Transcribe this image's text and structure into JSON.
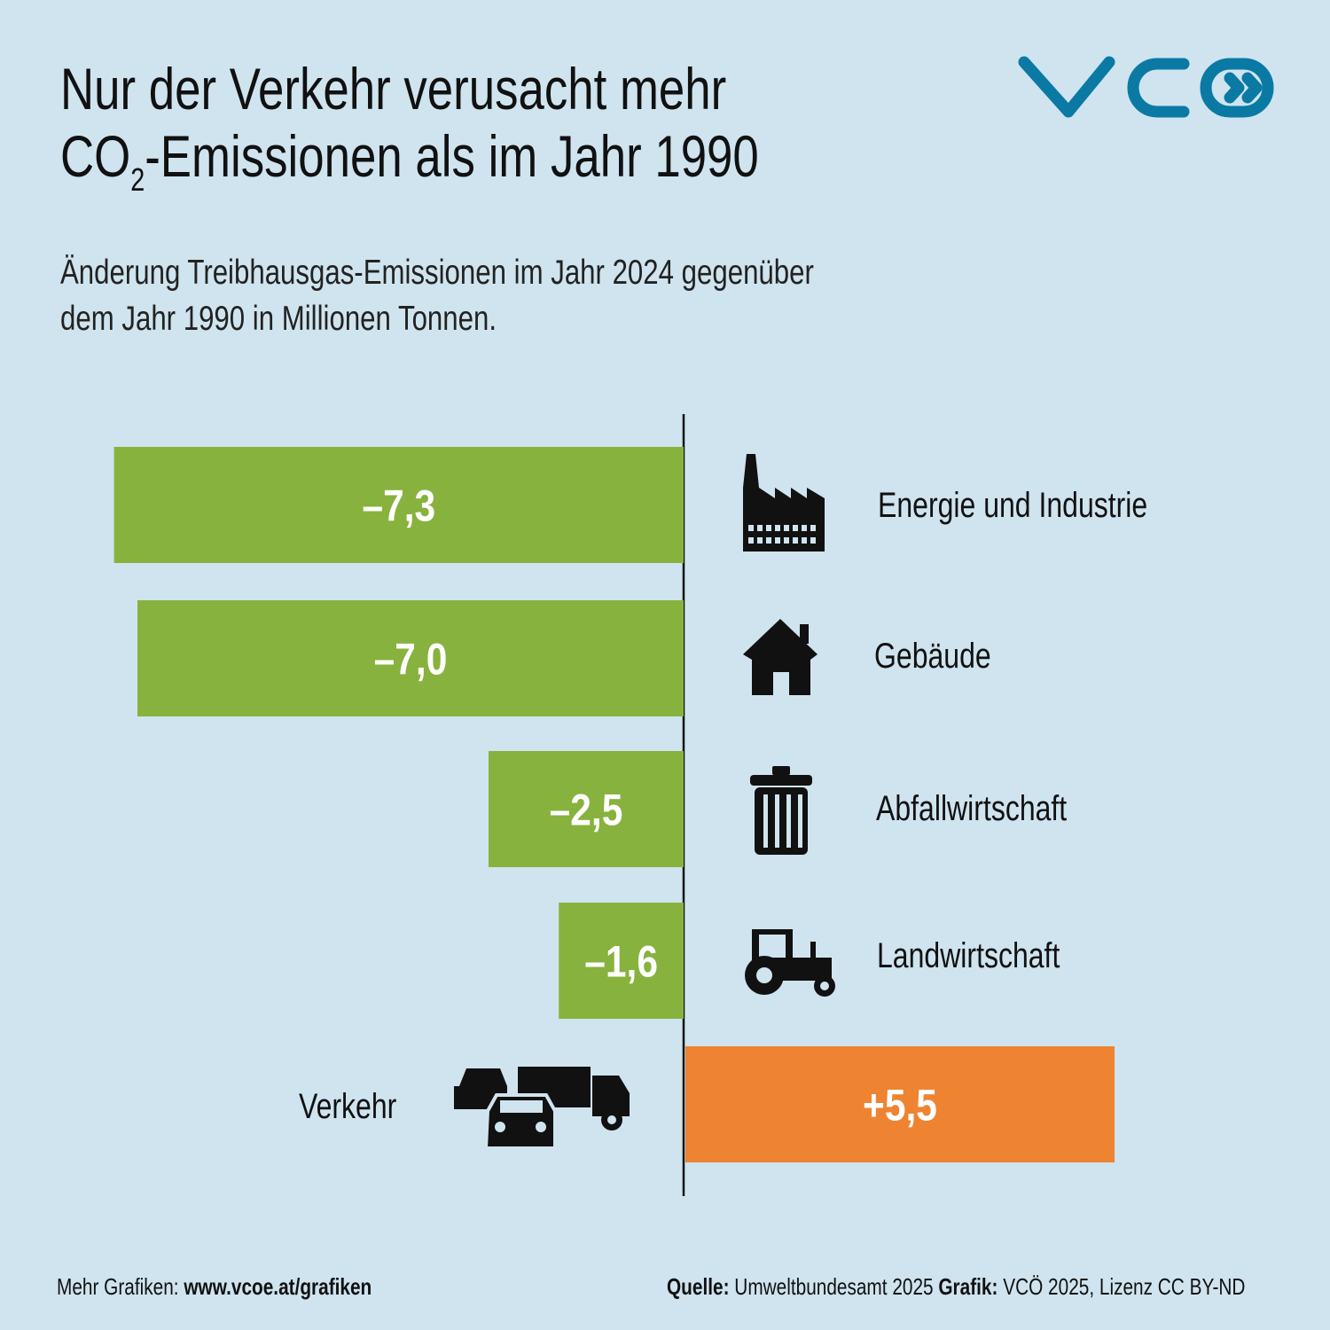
{
  "title": {
    "line1": "Nur der Verkehr verusacht mehr",
    "line2_pre": "CO",
    "line2_sub": "2",
    "line2_post": "-Emissionen als im Jahr 1990"
  },
  "subtitle": {
    "line1": "Änderung Treibhausgas-Emissionen im Jahr 2024 gegenüber",
    "line2": "dem Jahr 1990 in Millionen Tonnen."
  },
  "logo": {
    "text": "VCÖ",
    "color": "#0a7aa5"
  },
  "colors": {
    "negative": "#87b23d",
    "positive": "#ee8431",
    "axis": "#111111"
  },
  "chart_data": {
    "type": "bar",
    "orientation": "horizontal",
    "title": "Nur der Verkehr verusacht mehr CO2-Emissionen als im Jahr 1990",
    "ylabel": "Millionen Tonnen",
    "categories": [
      "Energie und Industrie",
      "Gebäude",
      "Abfallwirtschaft",
      "Landwirtschaft",
      "Verkehr"
    ],
    "values": [
      -7.3,
      -7.0,
      -2.5,
      -1.6,
      5.5
    ],
    "labels": [
      "–7,3",
      "–7,0",
      "–2,5",
      "–1,6",
      "+5,5"
    ],
    "icons": [
      "factory-icon",
      "house-icon",
      "trash-can-icon",
      "tractor-icon",
      "traffic-vehicles-icon"
    ]
  },
  "footer": {
    "left_label": "Mehr Grafiken: ",
    "left_link": "www.vcoe.at/grafiken",
    "source_label": "Quelle:",
    "source": " Umweltbundesamt 2025 ",
    "graphic_label": "Grafik:",
    "graphic": " VCÖ 2025, Lizenz CC BY-ND"
  }
}
